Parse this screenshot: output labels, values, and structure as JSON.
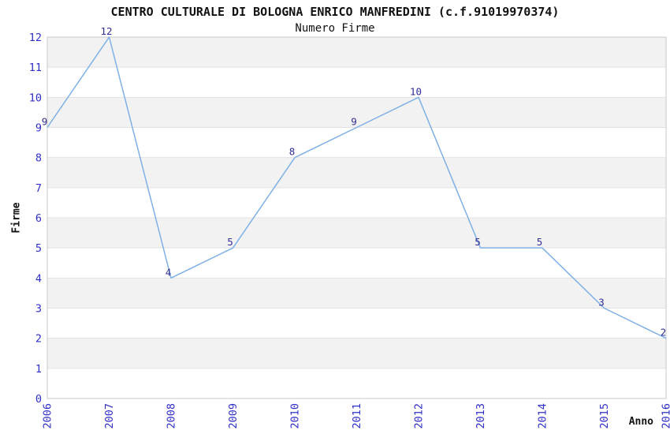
{
  "chart_data": {
    "type": "line",
    "title": "CENTRO CULTURALE DI BOLOGNA ENRICO MANFREDINI (c.f.91019970374)",
    "subtitle": "Numero Firme",
    "xlabel": "Anno",
    "ylabel": "Firme",
    "categories": [
      "2006",
      "2007",
      "2008",
      "2009",
      "2010",
      "2011",
      "2012",
      "2013",
      "2014",
      "2015",
      "2016"
    ],
    "values": [
      9,
      12,
      4,
      5,
      8,
      9,
      10,
      5,
      5,
      3,
      2
    ],
    "ylim": [
      0,
      12
    ],
    "ytick_step": 1,
    "xtick_rotation": -90,
    "grid": "horizontal",
    "alternating_bands": true,
    "legend_position": "none",
    "colors": {
      "line": "#7eb0e6",
      "tick_label": "#3030c8",
      "data_label": "#2e2e96",
      "band": "#f2f2f2",
      "gridline": "#e2e2e2",
      "border": "#c8c8c8",
      "text": "#111111",
      "plot_background": "#ffffff"
    }
  }
}
